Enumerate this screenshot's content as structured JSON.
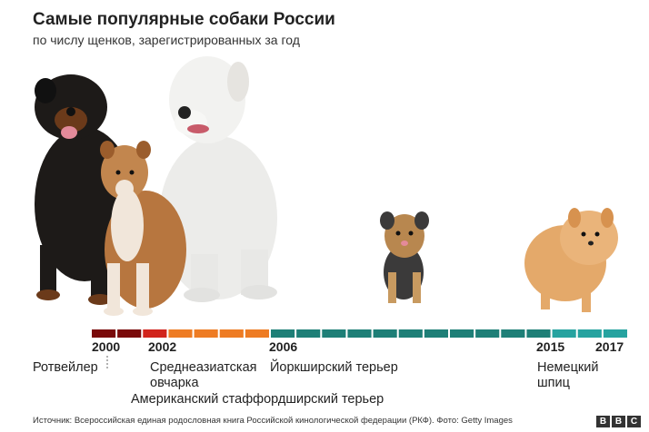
{
  "header": {
    "title": "Самые популярные собаки России",
    "subtitle": "по числу щенков, зарегистрированных за год"
  },
  "timeline": {
    "years": [
      {
        "label": "2000",
        "key": "y2000"
      },
      {
        "label": "2002",
        "key": "y2002"
      },
      {
        "label": "2006",
        "key": "y2006"
      },
      {
        "label": "2015",
        "key": "y2015"
      },
      {
        "label": "2017",
        "key": "y2017"
      }
    ],
    "segments": [
      {
        "color": "#7a0a0a"
      },
      {
        "color": "#7a0a0a"
      },
      {
        "color": "#d1241c"
      },
      {
        "color": "#ee7c24"
      },
      {
        "color": "#ee7c24"
      },
      {
        "color": "#ee7c24"
      },
      {
        "color": "#ee7c24"
      },
      {
        "color": "#1e7f77"
      },
      {
        "color": "#1e7f77"
      },
      {
        "color": "#1e7f77"
      },
      {
        "color": "#1e7f77"
      },
      {
        "color": "#1e7f77"
      },
      {
        "color": "#1e7f77"
      },
      {
        "color": "#1e7f77"
      },
      {
        "color": "#1e7f77"
      },
      {
        "color": "#1e7f77"
      },
      {
        "color": "#1e7f77"
      },
      {
        "color": "#1e7f77"
      },
      {
        "color": "#26a3a0"
      },
      {
        "color": "#26a3a0"
      },
      {
        "color": "#26a3a0"
      }
    ]
  },
  "breeds": {
    "rottweiler": "Ротвейлер",
    "central_asian_line1": "Среднеазиатская",
    "central_asian_line2": "овчарка",
    "amstaff": "Американский стаффордширский терьер",
    "yorkie": "Йоркширский терьер",
    "spitz_line1": "Немецкий",
    "spitz_line2": "шпиц"
  },
  "footer": {
    "source": "Источник: Всероссийская единая родословная книга Российской кинологической федерации (РКФ). Фото: Getty Images",
    "logo_letters": [
      "B",
      "B",
      "C"
    ]
  },
  "colors": {
    "rottweiler": "#7a0a0a",
    "amstaff": "#d1241c",
    "central_asian": "#ee7c24",
    "yorkie": "#1e7f77",
    "spitz": "#26a3a0"
  }
}
